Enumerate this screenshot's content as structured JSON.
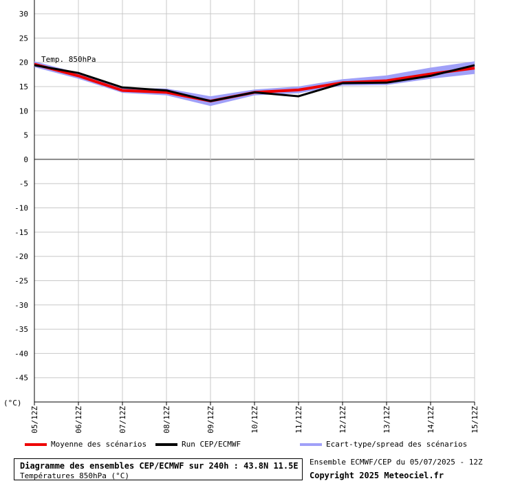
{
  "chart_data": {
    "type": "line",
    "series_label": "Temp. 850hPa",
    "unit_label": "(°C)",
    "categories": [
      "05/12Z",
      "06/12Z",
      "07/12Z",
      "08/12Z",
      "09/12Z",
      "10/12Z",
      "11/12Z",
      "12/12Z",
      "13/12Z",
      "14/12Z",
      "15/12Z"
    ],
    "ylim": [
      -50,
      30
    ],
    "yticks": [
      30,
      25,
      20,
      15,
      10,
      5,
      0,
      -5,
      -10,
      -15,
      -20,
      -25,
      -30,
      -35,
      -40,
      -45
    ],
    "grid": true,
    "legend_position": "bottom",
    "series": [
      {
        "name": "Moyenne des scénarios",
        "color": "#ee0000",
        "values": [
          19.6,
          17.2,
          14.2,
          13.8,
          12.0,
          13.8,
          14.3,
          15.8,
          16.2,
          17.6,
          18.8
        ]
      },
      {
        "name": "Run CEP/ECMWF",
        "color": "#000000",
        "values": [
          19.4,
          17.8,
          14.8,
          14.2,
          12.0,
          13.8,
          13.0,
          15.7,
          15.8,
          17.2,
          19.4
        ]
      }
    ],
    "spread": {
      "name": "Ecart-type/spread des scénarios",
      "color": "#a0a0f8",
      "lower": [
        19.0,
        16.6,
        13.7,
        13.2,
        11.0,
        13.2,
        13.6,
        15.2,
        15.3,
        16.6,
        17.6
      ],
      "upper": [
        20.2,
        17.8,
        14.7,
        14.6,
        13.0,
        14.4,
        15.0,
        16.5,
        17.3,
        18.9,
        20.2
      ]
    }
  },
  "footer": {
    "title": "Diagramme des ensembles CEP/ECMWF sur 240h : 43.8N 11.5E",
    "subtitle": "Températures 850hPa (°C)",
    "run_info": "Ensemble ECMWF/CEP du 05/07/2025 - 12Z",
    "copyright": "Copyright 2025 Meteociel.fr"
  }
}
